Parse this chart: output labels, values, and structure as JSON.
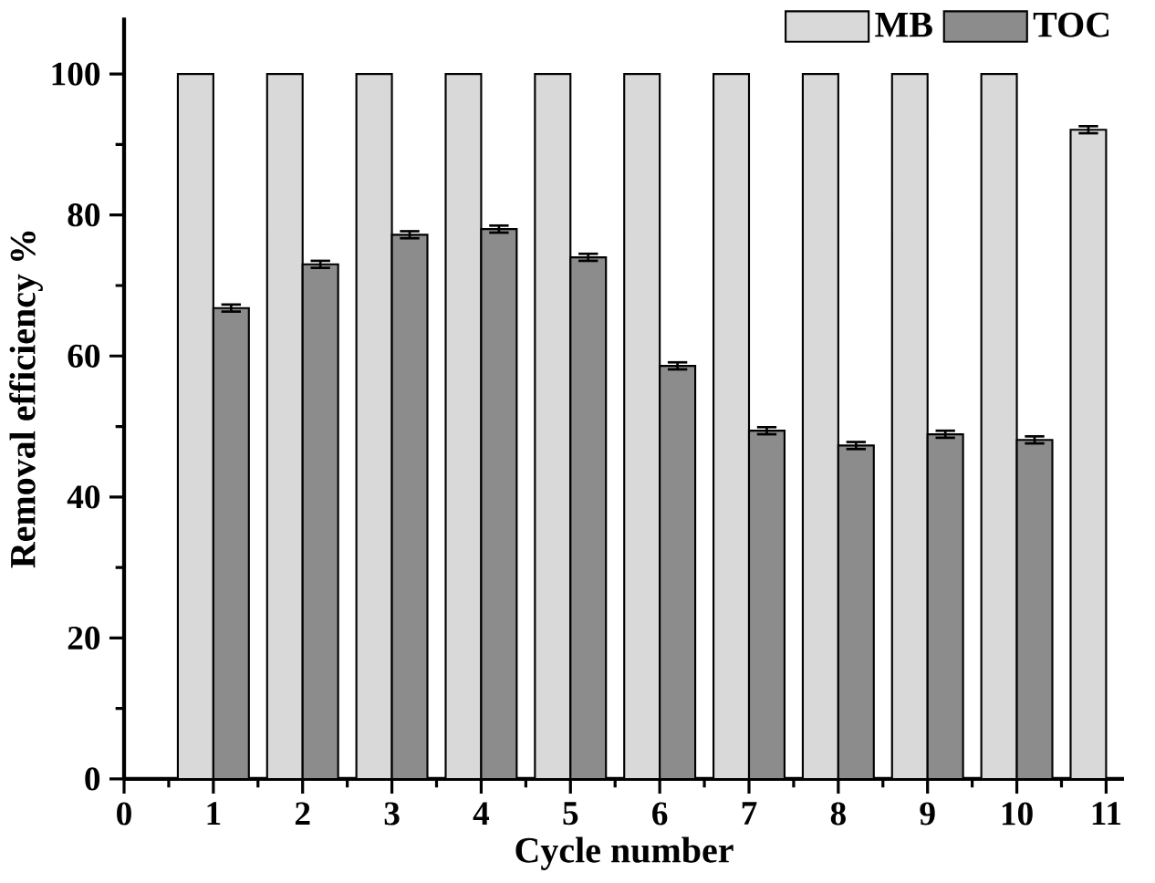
{
  "chart_data": {
    "type": "bar",
    "xlabel": "Cycle number",
    "ylabel": "Removal efficiency %",
    "x": [
      1,
      2,
      3,
      4,
      5,
      6,
      7,
      8,
      9,
      10,
      11
    ],
    "series": [
      {
        "name": "MB",
        "color": "#d9d9d9",
        "values": [
          100,
          100,
          100,
          100,
          100,
          100,
          100,
          100,
          100,
          100,
          92.1
        ],
        "errors": [
          null,
          null,
          null,
          null,
          null,
          null,
          null,
          null,
          null,
          null,
          0.5
        ]
      },
      {
        "name": "TOC",
        "color": "#8c8c8c",
        "values": [
          66.8,
          73.0,
          77.2,
          78.0,
          74.0,
          58.6,
          49.4,
          47.3,
          48.9,
          48.1,
          null
        ],
        "errors": [
          0.5,
          0.5,
          0.5,
          0.5,
          0.5,
          0.5,
          0.5,
          0.5,
          0.5,
          0.5,
          null
        ]
      }
    ],
    "xlim": [
      0,
      11.2
    ],
    "ylim": [
      0,
      108
    ],
    "xticks": [
      0,
      1,
      2,
      3,
      4,
      5,
      6,
      7,
      8,
      9,
      10,
      11
    ],
    "yticks": [
      0,
      20,
      40,
      60,
      80,
      100
    ],
    "legend": "top right",
    "grid": false
  }
}
